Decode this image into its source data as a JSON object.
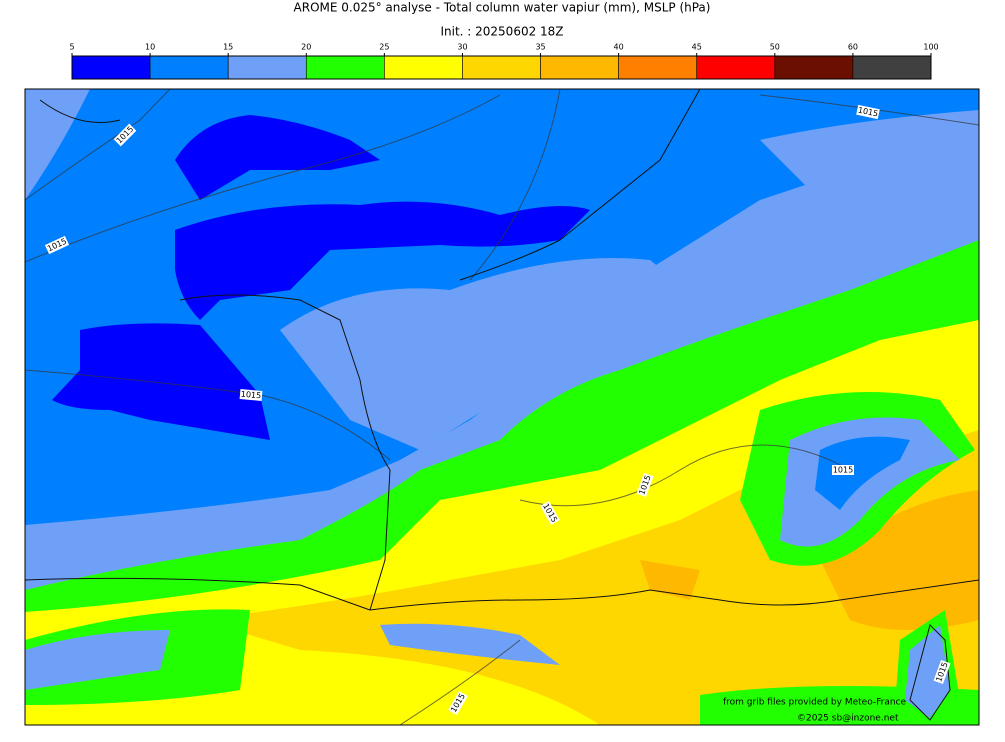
{
  "title": "AROME 0.025° analyse - Total column water vapiur (mm), MSLP (hPa)",
  "subtitle": "Init. : 20250602 18Z",
  "colorbar": {
    "ticks": [
      5,
      10,
      15,
      20,
      25,
      30,
      35,
      40,
      45,
      50,
      60,
      100
    ],
    "colors": [
      "#0000ff",
      "#0080ff",
      "#6fa0f8",
      "#22ff00",
      "#ffff00",
      "#ffd700",
      "#ffb800",
      "#ff8000",
      "#ff0000",
      "#6b0f00",
      "#404040"
    ]
  },
  "isobar_labels": [
    "1015",
    "1015",
    "1015",
    "1015",
    "1015",
    "1015",
    "1015",
    "1015",
    "1015"
  ],
  "credits": [
    "from grib files provided by Meteo-France",
    "©2025 sb@inzone.net"
  ]
}
